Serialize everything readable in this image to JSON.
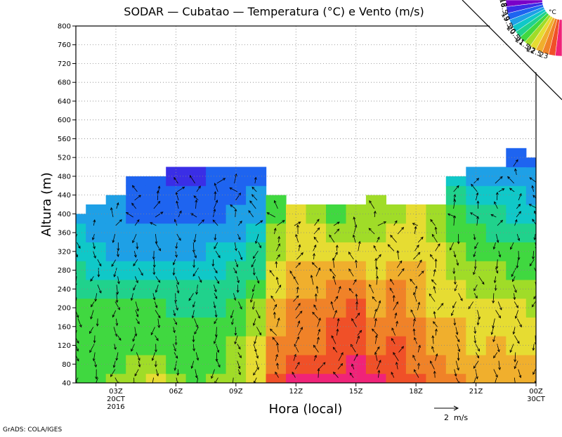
{
  "chart_data": {
    "type": "heatmap",
    "title": "SODAR — Cubatao — Temperatura (°C) e Vento (m/s)",
    "xlabel": "Hora (local)",
    "ylabel": "Altura (m)",
    "xlim": [
      0,
      23
    ],
    "ylim": [
      40,
      800
    ],
    "yticks": [
      40,
      80,
      120,
      160,
      200,
      240,
      280,
      320,
      360,
      400,
      440,
      480,
      520,
      560,
      600,
      640,
      680,
      720,
      760,
      800
    ],
    "xticks": [
      {
        "hour": 2,
        "label": "03Z",
        "sub1": "20CT",
        "sub2": "2016"
      },
      {
        "hour": 5,
        "label": "06Z",
        "sub1": "",
        "sub2": ""
      },
      {
        "hour": 8,
        "label": "09Z",
        "sub1": "",
        "sub2": ""
      },
      {
        "hour": 11,
        "label": "12Z",
        "sub1": "",
        "sub2": ""
      },
      {
        "hour": 14,
        "label": "15Z",
        "sub1": "",
        "sub2": ""
      },
      {
        "hour": 17,
        "label": "18Z",
        "sub1": "",
        "sub2": ""
      },
      {
        "hour": 20,
        "label": "21Z",
        "sub1": "",
        "sub2": ""
      },
      {
        "hour": 23,
        "label": "00Z",
        "sub1": "30CT",
        "sub2": ""
      }
    ],
    "colorbar": {
      "unit": "°C",
      "levels": [
        "18",
        "18.5",
        "19",
        "19.5",
        "20",
        "20.5",
        "21",
        "21.5",
        "22",
        "22.5",
        "23"
      ],
      "colors": [
        "#7a00c8",
        "#3a2ee6",
        "#1e64f0",
        "#1ea0e6",
        "#10c8c8",
        "#20d28c",
        "#40d840",
        "#a0dc28",
        "#e6dc32",
        "#f0af2d",
        "#f08228",
        "#f05028",
        "#f02378"
      ]
    },
    "top_heights": [
      400,
      420,
      440,
      480,
      480,
      500,
      500,
      500,
      500,
      500,
      440,
      420,
      420,
      420,
      420,
      440,
      420,
      420,
      420,
      480,
      500,
      500,
      540,
      520
    ],
    "temperature_profiles": {
      "description": "Temperature (°C) by hour (index 0-23) at heights 40,80,...",
      "heights": [
        40,
        80,
        120,
        160,
        200,
        240,
        280,
        320,
        360,
        400,
        440,
        480,
        520
      ],
      "rows": [
        [
          20.3,
          20.3,
          20.2,
          20.1,
          20.0,
          19.9,
          19.5,
          19.2,
          19.0,
          18.9
        ],
        [
          20.4,
          20.3,
          20.2,
          20.1,
          20.0,
          19.8,
          19.4,
          19.0,
          18.9,
          18.8,
          18.8
        ],
        [
          20.5,
          20.4,
          20.3,
          20.2,
          20.0,
          19.7,
          19.2,
          18.9,
          18.7,
          18.6,
          18.5
        ],
        [
          20.8,
          20.6,
          20.4,
          20.2,
          20.0,
          19.6,
          19.1,
          18.8,
          18.5,
          18.3,
          18.2,
          18.1
        ],
        [
          21.0,
          20.7,
          20.4,
          20.2,
          20.0,
          19.6,
          19.2,
          18.8,
          18.6,
          18.4,
          18.2,
          18.1
        ],
        [
          20.6,
          20.4,
          20.2,
          20.1,
          19.9,
          19.6,
          19.2,
          18.8,
          18.5,
          18.2,
          18.0,
          17.9,
          17.9
        ],
        [
          20.3,
          20.2,
          20.1,
          20.0,
          19.8,
          19.5,
          19.2,
          18.9,
          18.6,
          18.3,
          18.1,
          17.9,
          17.9
        ],
        [
          20.5,
          20.4,
          20.2,
          20.1,
          19.9,
          19.6,
          19.3,
          19.0,
          18.7,
          18.4,
          18.2,
          18.0,
          18.0
        ],
        [
          20.9,
          20.7,
          20.5,
          20.3,
          20.1,
          19.9,
          19.5,
          19.2,
          18.9,
          18.6,
          18.3,
          18.1,
          18.1
        ],
        [
          21.4,
          21.2,
          21.0,
          20.8,
          20.5,
          20.2,
          19.9,
          19.5,
          19.2,
          18.9,
          18.6,
          18.4,
          18.4
        ],
        [
          22.6,
          22.4,
          22.0,
          21.8,
          21.6,
          21.4,
          21.2,
          20.9,
          20.6,
          20.4,
          20.2
        ],
        [
          23.0,
          22.6,
          22.3,
          22.2,
          22.0,
          21.8,
          21.6,
          21.4,
          21.2,
          21.0
        ],
        [
          23.2,
          22.7,
          22.4,
          22.2,
          22.1,
          21.9,
          21.6,
          21.3,
          21.0,
          20.8
        ],
        [
          23.3,
          22.8,
          22.6,
          22.5,
          22.4,
          22.0,
          21.6,
          21.1,
          20.6,
          20.2
        ],
        [
          23.3,
          23.0,
          22.8,
          22.6,
          22.5,
          22.2,
          21.8,
          21.3,
          20.8,
          20.5
        ],
        [
          23.0,
          22.6,
          22.3,
          22.1,
          21.9,
          21.7,
          21.4,
          21.2,
          20.9,
          20.7
        ],
        [
          22.9,
          22.7,
          22.5,
          22.4,
          22.3,
          22.0,
          21.6,
          21.3,
          21.0,
          20.9,
          20.9
        ],
        [
          22.6,
          22.4,
          22.2,
          22.0,
          21.9,
          21.7,
          21.5,
          21.3,
          21.1,
          21.0
        ],
        [
          22.2,
          22.0,
          21.8,
          21.6,
          21.4,
          21.3,
          21.1,
          21.0,
          20.9,
          20.8
        ],
        [
          22.1,
          21.8,
          21.6,
          21.5,
          21.3,
          21.0,
          20.8,
          20.6,
          20.3,
          20.0,
          19.6,
          19.2
        ],
        [
          21.8,
          21.6,
          21.4,
          21.3,
          21.1,
          20.8,
          20.6,
          20.3,
          20.0,
          19.5,
          19.0,
          18.6,
          18.5
        ],
        [
          21.9,
          21.7,
          21.5,
          21.3,
          21.1,
          20.8,
          20.5,
          20.2,
          19.9,
          19.5,
          19.0,
          18.6,
          18.5
        ],
        [
          21.8,
          21.6,
          21.4,
          21.2,
          21.0,
          20.7,
          20.4,
          20.1,
          19.8,
          19.4,
          19.0,
          18.6,
          18.3,
          18.2
        ],
        [
          21.7,
          21.5,
          21.3,
          21.1,
          20.8,
          20.5,
          20.2,
          20.0,
          19.7,
          19.3,
          18.8,
          18.5,
          18.2,
          18.2
        ]
      ]
    },
    "wind_reference": {
      "speed": 2,
      "label": "2  m/s"
    },
    "credit": "GrADS: COLA/IGES"
  }
}
